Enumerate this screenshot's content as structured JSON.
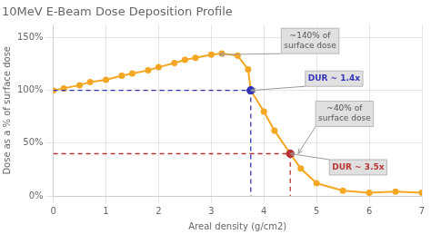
{
  "chart_data": {
    "type": "line",
    "title": "10MeV E-Beam Dose Deposition Profile",
    "x_label": "Areal density (g/cm2)",
    "y_label": "Dose as a % of surface dose",
    "xlim": [
      0,
      7
    ],
    "ylim": [
      0,
      162
    ],
    "xticks": [
      0,
      1,
      2,
      3,
      4,
      5,
      6,
      7
    ],
    "yticks": [
      {
        "value": 0,
        "label": "0%"
      },
      {
        "value": 50,
        "label": "50%"
      },
      {
        "value": 100,
        "label": "100%"
      },
      {
        "value": 150,
        "label": "150%"
      }
    ],
    "grid": true,
    "x": [
      0.0,
      0.2,
      0.5,
      0.7,
      1.0,
      1.3,
      1.5,
      1.8,
      2.0,
      2.3,
      2.5,
      2.7,
      3.0,
      3.2,
      3.5,
      3.7,
      3.75,
      4.0,
      4.2,
      4.5,
      4.7,
      5.0,
      5.5,
      6.0,
      6.5,
      7.0
    ],
    "series": [
      {
        "color": "#F5A623",
        "marker": "o",
        "values": [
          100,
          102,
          105,
          108,
          110,
          114,
          116,
          119,
          122,
          126,
          129,
          131,
          134,
          135,
          133,
          120,
          100,
          80,
          62,
          40,
          26,
          12,
          5,
          3,
          4,
          3
        ]
      }
    ],
    "reference_points": [
      {
        "x": 3.75,
        "y": 100,
        "color": "#3333BB"
      },
      {
        "x": 4.5,
        "y": 40,
        "color": "#BB3333"
      }
    ],
    "annotations": [
      {
        "text": "~140% of\nsurface dose",
        "x": 3.15,
        "y": 134,
        "color": "#555555"
      },
      {
        "text": "DUR ~ 1.4x",
        "x": 3.75,
        "y": 100,
        "color": "#3333BB"
      },
      {
        "text": "~40% of\nsurface dose",
        "x": 4.65,
        "y": 40,
        "color": "#555555"
      },
      {
        "text": "DUR ~ 3.5x",
        "x": 4.5,
        "y": 40,
        "color": "#BB3333"
      }
    ]
  }
}
